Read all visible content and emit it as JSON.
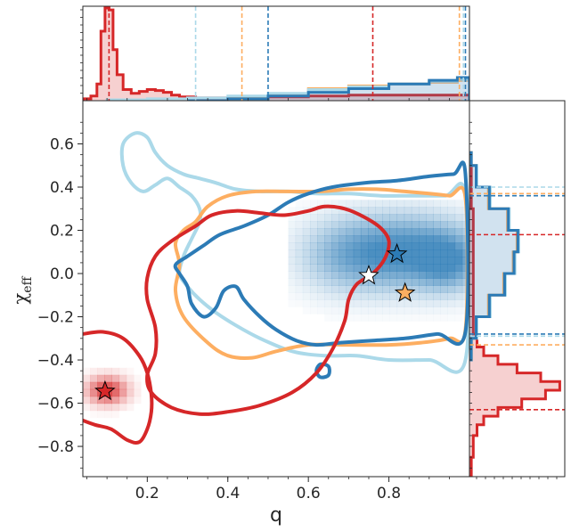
{
  "chart_data": {
    "type": "scatter",
    "subtype": "joint-density-contour-with-marginal-histograms",
    "xlabel": "q",
    "ylabel": "χ",
    "ylabel_subscript": "eff",
    "xlim": [
      0.04,
      1.0
    ],
    "ylim": [
      -0.94,
      0.8
    ],
    "xticks": [
      0.2,
      0.4,
      0.6,
      0.8
    ],
    "xtick_labels": [
      "0.2",
      "0.4",
      "0.6",
      "0.8"
    ],
    "yticks": [
      -0.8,
      -0.6,
      -0.4,
      -0.2,
      0.0,
      0.2,
      0.4,
      0.6
    ],
    "ytick_labels": [
      "−0.8",
      "−0.6",
      "−0.4",
      "−0.2",
      "0.0",
      "0.2",
      "0.4",
      "0.6"
    ],
    "grid": false,
    "colors": {
      "red": "#d62728",
      "orange": "#fdae61",
      "dark_blue": "#2c7bb6",
      "light_blue": "#abd9e9",
      "density_blue": "#2c7bb6",
      "density_red": "#d62728"
    },
    "markers": [
      {
        "x": 0.75,
        "y": -0.01,
        "fill": "#ffffff"
      },
      {
        "x": 0.82,
        "y": 0.09,
        "fill": "#2c7bb6"
      },
      {
        "x": 0.84,
        "y": -0.09,
        "fill": "#fdae61"
      },
      {
        "x": 0.095,
        "y": -0.545,
        "fill": "#d62728"
      }
    ],
    "top_marginal_quantiles": {
      "red": [
        0.105,
        0.76
      ],
      "light_blue": [
        0.32,
        0.985
      ],
      "orange": [
        0.435,
        0.975
      ],
      "dark_blue": [
        0.5,
        0.99
      ]
    },
    "right_marginal_quantiles": {
      "light_blue": [
        0.4,
        -0.29
      ],
      "orange": [
        0.37,
        -0.33
      ],
      "dark_blue": [
        0.36,
        -0.28
      ],
      "red": [
        0.18,
        -0.63
      ]
    },
    "series": [
      {
        "color": "red",
        "contours": [
          [
            [
              0.04,
              -0.28
            ],
            [
              0.09,
              -0.27
            ],
            [
              0.14,
              -0.3
            ],
            [
              0.18,
              -0.38
            ],
            [
              0.2,
              -0.46
            ],
            [
              0.21,
              -0.56
            ],
            [
              0.21,
              -0.64
            ],
            [
              0.2,
              -0.72
            ],
            [
              0.18,
              -0.78
            ],
            [
              0.15,
              -0.77
            ],
            [
              0.11,
              -0.72
            ],
            [
              0.07,
              -0.7
            ],
            [
              0.04,
              -0.68
            ]
          ],
          [
            [
              0.32,
              0.22
            ],
            [
              0.36,
              0.27
            ],
            [
              0.42,
              0.29
            ],
            [
              0.48,
              0.28
            ],
            [
              0.54,
              0.27
            ],
            [
              0.6,
              0.29
            ],
            [
              0.64,
              0.31
            ],
            [
              0.69,
              0.3
            ],
            [
              0.74,
              0.26
            ],
            [
              0.78,
              0.21
            ],
            [
              0.8,
              0.15
            ],
            [
              0.79,
              0.07
            ],
            [
              0.76,
              0.0
            ],
            [
              0.72,
              -0.05
            ],
            [
              0.7,
              -0.12
            ],
            [
              0.69,
              -0.22
            ],
            [
              0.66,
              -0.35
            ],
            [
              0.62,
              -0.46
            ],
            [
              0.56,
              -0.55
            ],
            [
              0.48,
              -0.61
            ],
            [
              0.4,
              -0.64
            ],
            [
              0.33,
              -0.65
            ],
            [
              0.26,
              -0.62
            ],
            [
              0.21,
              -0.55
            ],
            [
              0.2,
              -0.47
            ],
            [
              0.22,
              -0.37
            ],
            [
              0.22,
              -0.25
            ],
            [
              0.2,
              -0.12
            ],
            [
              0.2,
              -0.02
            ],
            [
              0.22,
              0.08
            ],
            [
              0.26,
              0.15
            ],
            [
              0.32,
              0.22
            ]
          ]
        ]
      },
      {
        "color": "orange",
        "contours": [
          [
            [
              0.32,
              0.24
            ],
            [
              0.35,
              0.31
            ],
            [
              0.4,
              0.36
            ],
            [
              0.47,
              0.38
            ],
            [
              0.55,
              0.38
            ],
            [
              0.63,
              0.38
            ],
            [
              0.7,
              0.39
            ],
            [
              0.77,
              0.39
            ],
            [
              0.84,
              0.38
            ],
            [
              0.9,
              0.37
            ],
            [
              0.95,
              0.36
            ],
            [
              0.99,
              0.35
            ],
            [
              0.99,
              -0.26
            ],
            [
              0.95,
              -0.3
            ],
            [
              0.88,
              -0.32
            ],
            [
              0.8,
              -0.33
            ],
            [
              0.7,
              -0.33
            ],
            [
              0.6,
              -0.33
            ],
            [
              0.52,
              -0.36
            ],
            [
              0.46,
              -0.39
            ],
            [
              0.4,
              -0.38
            ],
            [
              0.35,
              -0.32
            ],
            [
              0.29,
              -0.2
            ],
            [
              0.27,
              -0.08
            ],
            [
              0.28,
              0.04
            ],
            [
              0.27,
              0.14
            ],
            [
              0.29,
              0.2
            ],
            [
              0.32,
              0.24
            ]
          ]
        ]
      },
      {
        "color": "dark_blue",
        "contours": [
          [
            [
              0.3,
              0.08
            ],
            [
              0.34,
              0.13
            ],
            [
              0.38,
              0.18
            ],
            [
              0.44,
              0.22
            ],
            [
              0.5,
              0.27
            ],
            [
              0.55,
              0.33
            ],
            [
              0.6,
              0.37
            ],
            [
              0.66,
              0.4
            ],
            [
              0.74,
              0.42
            ],
            [
              0.82,
              0.43
            ],
            [
              0.9,
              0.45
            ],
            [
              0.96,
              0.46
            ],
            [
              0.99,
              0.46
            ],
            [
              0.99,
              -0.27
            ],
            [
              0.92,
              -0.28
            ],
            [
              0.84,
              -0.3
            ],
            [
              0.76,
              -0.31
            ],
            [
              0.68,
              -0.32
            ],
            [
              0.62,
              -0.33
            ],
            [
              0.57,
              -0.31
            ],
            [
              0.52,
              -0.26
            ],
            [
              0.48,
              -0.2
            ],
            [
              0.44,
              -0.12
            ],
            [
              0.42,
              -0.06
            ],
            [
              0.39,
              -0.08
            ],
            [
              0.37,
              -0.16
            ],
            [
              0.34,
              -0.2
            ],
            [
              0.31,
              -0.14
            ],
            [
              0.3,
              -0.06
            ],
            [
              0.28,
              0.0
            ],
            [
              0.27,
              0.04
            ],
            [
              0.3,
              0.08
            ]
          ],
          [
            [
              0.62,
              -0.45
            ],
            [
              0.63,
              -0.42
            ],
            [
              0.65,
              -0.43
            ],
            [
              0.65,
              -0.47
            ],
            [
              0.63,
              -0.48
            ],
            [
              0.62,
              -0.45
            ]
          ]
        ]
      },
      {
        "color": "light_blue",
        "contours": [
          [
            [
              0.14,
              0.6
            ],
            [
              0.17,
              0.65
            ],
            [
              0.2,
              0.63
            ],
            [
              0.22,
              0.56
            ],
            [
              0.25,
              0.5
            ],
            [
              0.29,
              0.46
            ],
            [
              0.33,
              0.44
            ],
            [
              0.37,
              0.42
            ],
            [
              0.42,
              0.39
            ],
            [
              0.48,
              0.38
            ],
            [
              0.55,
              0.38
            ],
            [
              0.62,
              0.37
            ],
            [
              0.7,
              0.37
            ],
            [
              0.78,
              0.36
            ],
            [
              0.86,
              0.36
            ],
            [
              0.94,
              0.36
            ],
            [
              0.99,
              0.36
            ],
            [
              0.99,
              -0.4
            ],
            [
              0.9,
              -0.4
            ],
            [
              0.8,
              -0.4
            ],
            [
              0.72,
              -0.38
            ],
            [
              0.64,
              -0.38
            ],
            [
              0.56,
              -0.36
            ],
            [
              0.48,
              -0.3
            ],
            [
              0.42,
              -0.24
            ],
            [
              0.37,
              -0.18
            ],
            [
              0.33,
              -0.12
            ],
            [
              0.3,
              -0.06
            ],
            [
              0.28,
              0.0
            ],
            [
              0.29,
              0.08
            ],
            [
              0.31,
              0.16
            ],
            [
              0.33,
              0.24
            ],
            [
              0.33,
              0.3
            ],
            [
              0.31,
              0.36
            ],
            [
              0.28,
              0.4
            ],
            [
              0.25,
              0.44
            ],
            [
              0.22,
              0.41
            ],
            [
              0.19,
              0.38
            ],
            [
              0.16,
              0.42
            ],
            [
              0.14,
              0.5
            ],
            [
              0.14,
              0.6
            ]
          ]
        ]
      }
    ],
    "density_cells": [
      {
        "color": "density_blue",
        "x0": 0.55,
        "x1": 0.99,
        "y0": -0.22,
        "y1": 0.32,
        "peak_x": 0.84,
        "peak_y": 0.1,
        "sx": 0.12,
        "sy": 0.12
      },
      {
        "color": "density_red",
        "x0": 0.04,
        "x1": 0.24,
        "y0": -0.7,
        "y1": -0.4,
        "peak_x": 0.1,
        "peak_y": -0.54,
        "sx": 0.035,
        "sy": 0.045
      }
    ],
    "top_histograms": [
      {
        "color": "red",
        "fill": true,
        "bins": [
          [
            0.04,
            0.02
          ],
          [
            0.06,
            0.05
          ],
          [
            0.075,
            0.18
          ],
          [
            0.085,
            0.75
          ],
          [
            0.095,
            1.0
          ],
          [
            0.105,
            0.98
          ],
          [
            0.115,
            0.55
          ],
          [
            0.125,
            0.28
          ],
          [
            0.14,
            0.12
          ],
          [
            0.16,
            0.08
          ],
          [
            0.18,
            0.1
          ],
          [
            0.2,
            0.12
          ],
          [
            0.22,
            0.11
          ],
          [
            0.24,
            0.09
          ],
          [
            0.26,
            0.06
          ],
          [
            0.28,
            0.04
          ],
          [
            0.32,
            0.03
          ],
          [
            0.4,
            0.03
          ],
          [
            0.5,
            0.04
          ],
          [
            0.6,
            0.05
          ],
          [
            0.7,
            0.06
          ],
          [
            0.8,
            0.06
          ],
          [
            0.9,
            0.06
          ],
          [
            0.97,
            0.06
          ]
        ]
      },
      {
        "color": "orange",
        "fill": false,
        "bins": [
          [
            0.3,
            0.0
          ],
          [
            0.4,
            0.03
          ],
          [
            0.5,
            0.07
          ],
          [
            0.6,
            0.13
          ],
          [
            0.7,
            0.16
          ],
          [
            0.8,
            0.18
          ],
          [
            0.9,
            0.2
          ],
          [
            0.97,
            0.22
          ]
        ]
      },
      {
        "color": "light_blue",
        "fill": false,
        "bins": [
          [
            0.1,
            0.01
          ],
          [
            0.2,
            0.02
          ],
          [
            0.3,
            0.03
          ],
          [
            0.4,
            0.05
          ],
          [
            0.5,
            0.08
          ],
          [
            0.6,
            0.12
          ],
          [
            0.7,
            0.15
          ],
          [
            0.8,
            0.18
          ],
          [
            0.9,
            0.21
          ],
          [
            0.97,
            0.23
          ]
        ]
      },
      {
        "color": "dark_blue",
        "fill": true,
        "bins": [
          [
            0.3,
            0.0
          ],
          [
            0.4,
            0.02
          ],
          [
            0.5,
            0.05
          ],
          [
            0.6,
            0.09
          ],
          [
            0.7,
            0.13
          ],
          [
            0.8,
            0.18
          ],
          [
            0.9,
            0.22
          ],
          [
            0.97,
            0.25
          ]
        ]
      }
    ],
    "right_histograms": [
      {
        "color": "red",
        "fill": true,
        "bins": [
          [
            -0.94,
            0.02
          ],
          [
            -0.85,
            0.04
          ],
          [
            -0.75,
            0.08
          ],
          [
            -0.7,
            0.15
          ],
          [
            -0.66,
            0.3
          ],
          [
            -0.62,
            0.55
          ],
          [
            -0.58,
            0.8
          ],
          [
            -0.54,
            0.95
          ],
          [
            -0.5,
            0.75
          ],
          [
            -0.46,
            0.5
          ],
          [
            -0.42,
            0.3
          ],
          [
            -0.38,
            0.15
          ],
          [
            -0.34,
            0.08
          ],
          [
            -0.28,
            0.04
          ],
          [
            -0.1,
            0.04
          ],
          [
            0.1,
            0.04
          ],
          [
            0.3,
            0.02
          ],
          [
            0.5,
            0.01
          ]
        ]
      },
      {
        "color": "light_blue",
        "fill": false,
        "bins": [
          [
            -0.4,
            0.02
          ],
          [
            -0.3,
            0.08
          ],
          [
            -0.2,
            0.22
          ],
          [
            -0.1,
            0.38
          ],
          [
            0.0,
            0.48
          ],
          [
            0.1,
            0.52
          ],
          [
            0.2,
            0.42
          ],
          [
            0.3,
            0.22
          ],
          [
            0.4,
            0.08
          ],
          [
            0.5,
            0.02
          ]
        ]
      },
      {
        "color": "orange",
        "fill": false,
        "bins": [
          [
            -0.4,
            0.02
          ],
          [
            -0.3,
            0.07
          ],
          [
            -0.2,
            0.2
          ],
          [
            -0.1,
            0.36
          ],
          [
            0.0,
            0.46
          ],
          [
            0.1,
            0.5
          ],
          [
            0.2,
            0.4
          ],
          [
            0.3,
            0.2
          ],
          [
            0.4,
            0.07
          ],
          [
            0.5,
            0.02
          ]
        ]
      },
      {
        "color": "dark_blue",
        "fill": true,
        "bins": [
          [
            -0.4,
            0.02
          ],
          [
            -0.3,
            0.07
          ],
          [
            -0.2,
            0.21
          ],
          [
            -0.1,
            0.37
          ],
          [
            0.0,
            0.47
          ],
          [
            0.1,
            0.51
          ],
          [
            0.2,
            0.41
          ],
          [
            0.3,
            0.21
          ],
          [
            0.4,
            0.07
          ],
          [
            0.5,
            0.02
          ]
        ]
      }
    ]
  }
}
